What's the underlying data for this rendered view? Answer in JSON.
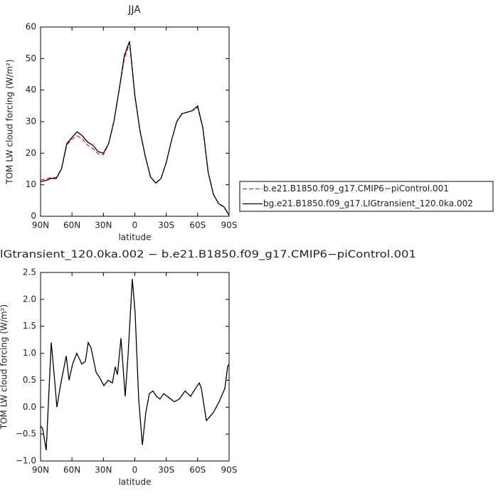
{
  "chart_data": [
    {
      "type": "line",
      "title": "JJA",
      "xlabel": "latitude",
      "ylabel": "TOM LW cloud forcing (W/m²)",
      "x": [
        90,
        85,
        80,
        75,
        70,
        65,
        60,
        55,
        50,
        45,
        40,
        35,
        30,
        25,
        20,
        15,
        10,
        5,
        0,
        -5,
        -10,
        -15,
        -20,
        -25,
        -30,
        -35,
        -40,
        -45,
        -50,
        -55,
        -60,
        -65,
        -70,
        -75,
        -80,
        -85,
        -90
      ],
      "series": [
        {
          "name": "b.e21.B1850.f09_g17.CMIP6−piControl.001",
          "color": "#e8202a",
          "linestyle": "dashed",
          "values": [
            11.5,
            11.8,
            12.3,
            12.3,
            15,
            22.5,
            24.5,
            25.5,
            24.5,
            22.5,
            21.5,
            19.8,
            19.5,
            23,
            30,
            40,
            50,
            55,
            38,
            27,
            19,
            12.5,
            10.5,
            12,
            17,
            24,
            30,
            32.5,
            33,
            33.5,
            34.5,
            28,
            14,
            7,
            4,
            3,
            0.5
          ]
        },
        {
          "name": "bg.e21.B1850.f09_g17.LIGtransient_120.0ka.002",
          "color": "#000000",
          "linestyle": "solid",
          "values": [
            11,
            11.3,
            12,
            12,
            15,
            23,
            25,
            26.8,
            25.5,
            23.5,
            22.5,
            20.5,
            20,
            23,
            30,
            40,
            51,
            55.5,
            38.5,
            27,
            19,
            12.5,
            10.5,
            12,
            17,
            24,
            30,
            32.5,
            33,
            33.5,
            35,
            28,
            14,
            7,
            4,
            3,
            0.3
          ]
        }
      ],
      "xlim": [
        90,
        -90
      ],
      "xticks": [
        {
          "value": 90,
          "label": "90N"
        },
        {
          "value": 60,
          "label": "60N"
        },
        {
          "value": 30,
          "label": "30N"
        },
        0,
        {
          "value": -30,
          "label": "30S"
        },
        {
          "value": -60,
          "label": "60S"
        },
        {
          "value": -90,
          "label": "90S"
        }
      ],
      "ylim": [
        0,
        60
      ],
      "yticks": [
        0,
        10,
        20,
        30,
        40,
        50,
        60
      ],
      "legend": "outside-right"
    },
    {
      "type": "line",
      "title": "lGtransient_120.0ka.002 − b.e21.B1850.f09_g17.CMIP6−piControl.001",
      "xlabel": "latitude",
      "ylabel": "TOM LW cloud forcing (W/m²)",
      "x": [
        90,
        88,
        84.6,
        79.8,
        77,
        74.4,
        71,
        65.5,
        62.8,
        59.4,
        55.4,
        50.6,
        47.2,
        44.5,
        41.8,
        37,
        33.6,
        29.5,
        25.5,
        21.4,
        18.7,
        16.6,
        13.2,
        9.2,
        6.5,
        2.4,
        -0.3,
        -3.7,
        -7.2,
        -10.5,
        -13.9,
        -17.3,
        -20.7,
        -24,
        -27.5,
        -34.3,
        -37.7,
        -42.5,
        -47.9,
        -53.3,
        -58,
        -61.5,
        -63.5,
        -68.3,
        -75,
        -80.5,
        -86,
        -88.6,
        -90
      ],
      "series": [
        {
          "color": "#000000",
          "linestyle": "solid",
          "values": [
            -0.35,
            -0.4,
            -0.8,
            1.2,
            0.6,
            0.0,
            0.4,
            0.95,
            0.5,
            0.8,
            1.0,
            0.8,
            0.85,
            1.2,
            1.1,
            0.65,
            0.55,
            0.4,
            0.5,
            0.45,
            0.75,
            0.6,
            1.28,
            0.2,
            0.95,
            2.38,
            1.75,
            0.15,
            -0.7,
            -0.1,
            0.25,
            0.3,
            0.2,
            0.15,
            0.25,
            0.15,
            0.1,
            0.15,
            0.3,
            0.2,
            0.35,
            0.45,
            0.35,
            -0.25,
            -0.1,
            0.1,
            0.35,
            0.75,
            0.8
          ]
        }
      ],
      "xlim": [
        90,
        -90
      ],
      "xticks": [
        {
          "value": 90,
          "label": "90N"
        },
        {
          "value": 60,
          "label": "60N"
        },
        {
          "value": 30,
          "label": "30N"
        },
        0,
        {
          "value": -30,
          "label": "30S"
        },
        {
          "value": -60,
          "label": "60S"
        },
        {
          "value": -90,
          "label": "90S"
        }
      ],
      "ylim": [
        -1,
        2.5
      ],
      "yticks": [
        {
          "value": -1,
          "label": "−1.0"
        },
        {
          "value": -0.5,
          "label": "−0.5"
        },
        {
          "value": 0,
          "label": "0.0"
        },
        {
          "value": 0.5,
          "label": "0.5"
        },
        {
          "value": 1,
          "label": "1.0"
        },
        {
          "value": 1.5,
          "label": "1.5"
        },
        {
          "value": 2,
          "label": "2.0"
        },
        {
          "value": 2.5,
          "label": "2.5"
        }
      ]
    }
  ]
}
